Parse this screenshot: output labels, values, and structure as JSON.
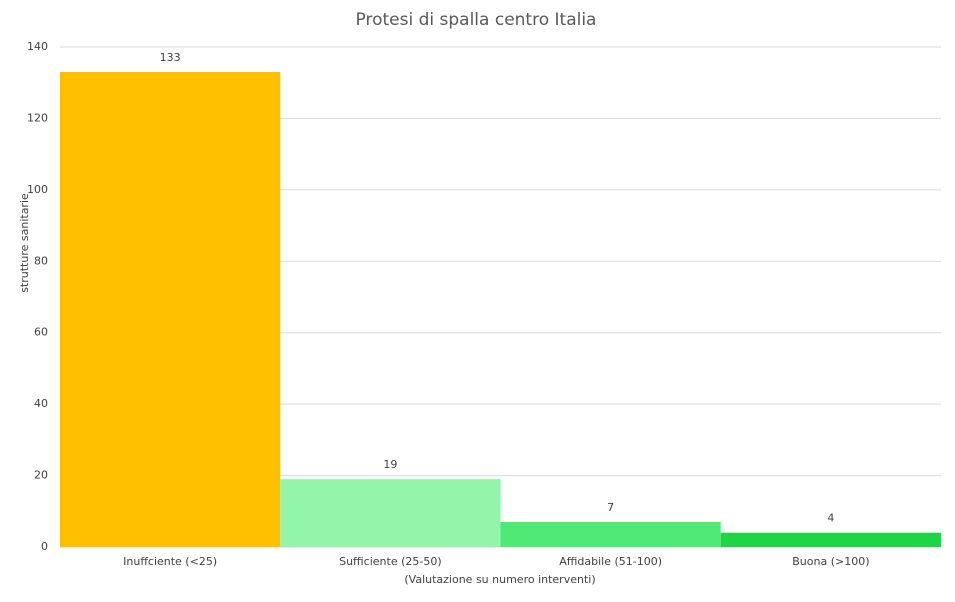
{
  "chart_data": {
    "type": "bar",
    "title": "Protesi di spalla centro Italia",
    "x_label": "(Valutazione su numero interventi)",
    "y_label": "strutture sanitarie",
    "categories": [
      "Inuffciente (<25)",
      "Sufficiente (25-50)",
      "Affidabile (51-100)",
      "Buona (>100)"
    ],
    "values": [
      133,
      19,
      7,
      4
    ],
    "colors": [
      "#ffc000",
      "#92f5a9",
      "#4fea76",
      "#1fd445"
    ],
    "ylim": [
      0,
      140
    ],
    "yticks": [
      0,
      20,
      40,
      60,
      80,
      100,
      120,
      140
    ],
    "grid": true
  }
}
